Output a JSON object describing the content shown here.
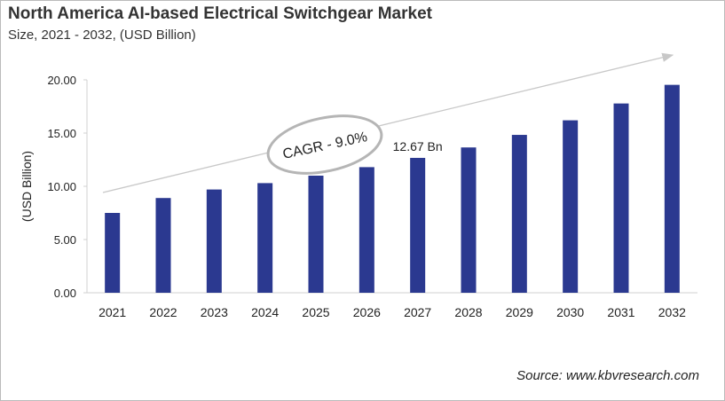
{
  "chart_data": {
    "type": "bar",
    "title": "North America AI-based  Electrical Switchgear Market",
    "subtitle": "Size, 2021 - 2032, (USD Billion)",
    "ylabel": "(USD Billion)",
    "xlabel": "",
    "categories": [
      "2021",
      "2022",
      "2023",
      "2024",
      "2025",
      "2026",
      "2027",
      "2028",
      "2029",
      "2030",
      "2031",
      "2032"
    ],
    "values": [
      7.5,
      8.9,
      9.7,
      10.3,
      11.0,
      11.8,
      12.67,
      13.65,
      14.83,
      16.2,
      17.78,
      19.53
    ],
    "ylim": [
      0,
      20
    ],
    "yticks": [
      "0.00",
      "5.00",
      "10.00",
      "15.00",
      "20.00"
    ],
    "grid": false,
    "bar_color": "#2b3990",
    "annotations": {
      "cagr": "CAGR - 9.0%",
      "data_label": "12.67 Bn",
      "data_label_category": "2027"
    },
    "source": "Source: www.kbvresearch.com"
  }
}
